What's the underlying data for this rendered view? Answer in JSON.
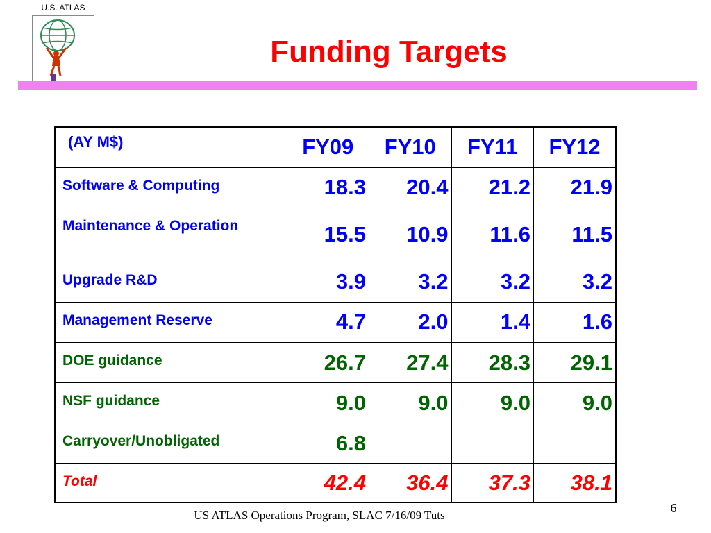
{
  "logo": {
    "label": "U.S. ATLAS",
    "icon": "atlas-figure-globe-icon"
  },
  "slide": {
    "title": "Funding Targets"
  },
  "table": {
    "corner": "(AY M$)",
    "years": [
      "FY09",
      "FY10",
      "FY11",
      "FY12"
    ],
    "rows": [
      {
        "label": "Software & Computing",
        "values": [
          "18.3",
          "20.4",
          "21.2",
          "21.9"
        ]
      },
      {
        "label": "Maintenance & Operation",
        "values": [
          "15.5",
          "10.9",
          "11.6",
          "11.5"
        ]
      },
      {
        "label": "Upgrade R&D",
        "values": [
          "3.9",
          "3.2",
          "3.2",
          "3.2"
        ]
      },
      {
        "label": "Management Reserve",
        "values": [
          "4.7",
          "2.0",
          "1.4",
          "1.6"
        ]
      },
      {
        "label": "DOE guidance",
        "values": [
          "26.7",
          "27.4",
          "28.3",
          "29.1"
        ]
      },
      {
        "label": "NSF guidance",
        "values": [
          "9.0",
          "9.0",
          "9.0",
          "9.0"
        ]
      },
      {
        "label": "Carryover/Unobligated",
        "values": [
          "6.8",
          "",
          "",
          ""
        ]
      },
      {
        "label": "Total",
        "values": [
          "42.4",
          "36.4",
          "37.3",
          "38.1"
        ]
      }
    ]
  },
  "footer": {
    "text": "US ATLAS Operations Program, SLAC 7/16/09 Tuts",
    "page": "6"
  },
  "colors": {
    "title": "#ff0000",
    "rule": "#ee82ee",
    "text": "#0000ff",
    "guidance": "#006400",
    "total": "#ff0000"
  }
}
